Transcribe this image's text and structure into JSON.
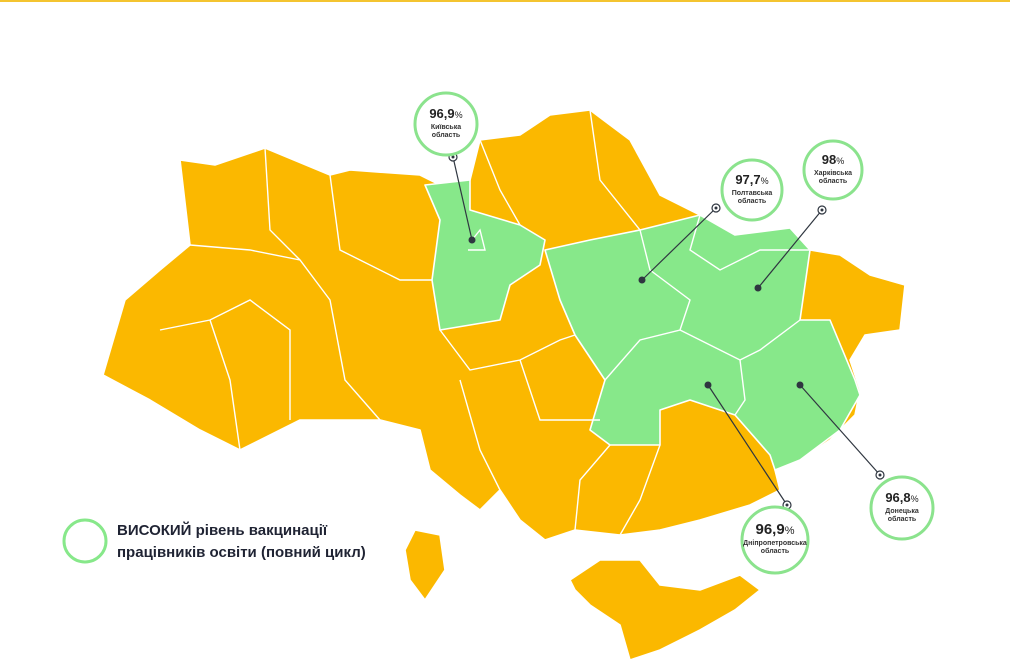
{
  "callouts": [
    {
      "value": "96,9",
      "unit": "%",
      "region": [
        "Київська",
        "область"
      ]
    },
    {
      "value": "97,7",
      "unit": "%",
      "region": [
        "Полтавська",
        "область"
      ]
    },
    {
      "value": "98",
      "unit": "%",
      "region": [
        "Харківська",
        "область"
      ]
    },
    {
      "value": "96,9",
      "unit": "%",
      "region": [
        "Дніпропетровська",
        "область"
      ]
    },
    {
      "value": "96,8",
      "unit": "%",
      "region": [
        "Донецька",
        "область"
      ]
    }
  ],
  "legend": {
    "lines": [
      "ВИСОКИЙ рівень вакцинації",
      "працівників освіти (повний цикл)"
    ]
  }
}
